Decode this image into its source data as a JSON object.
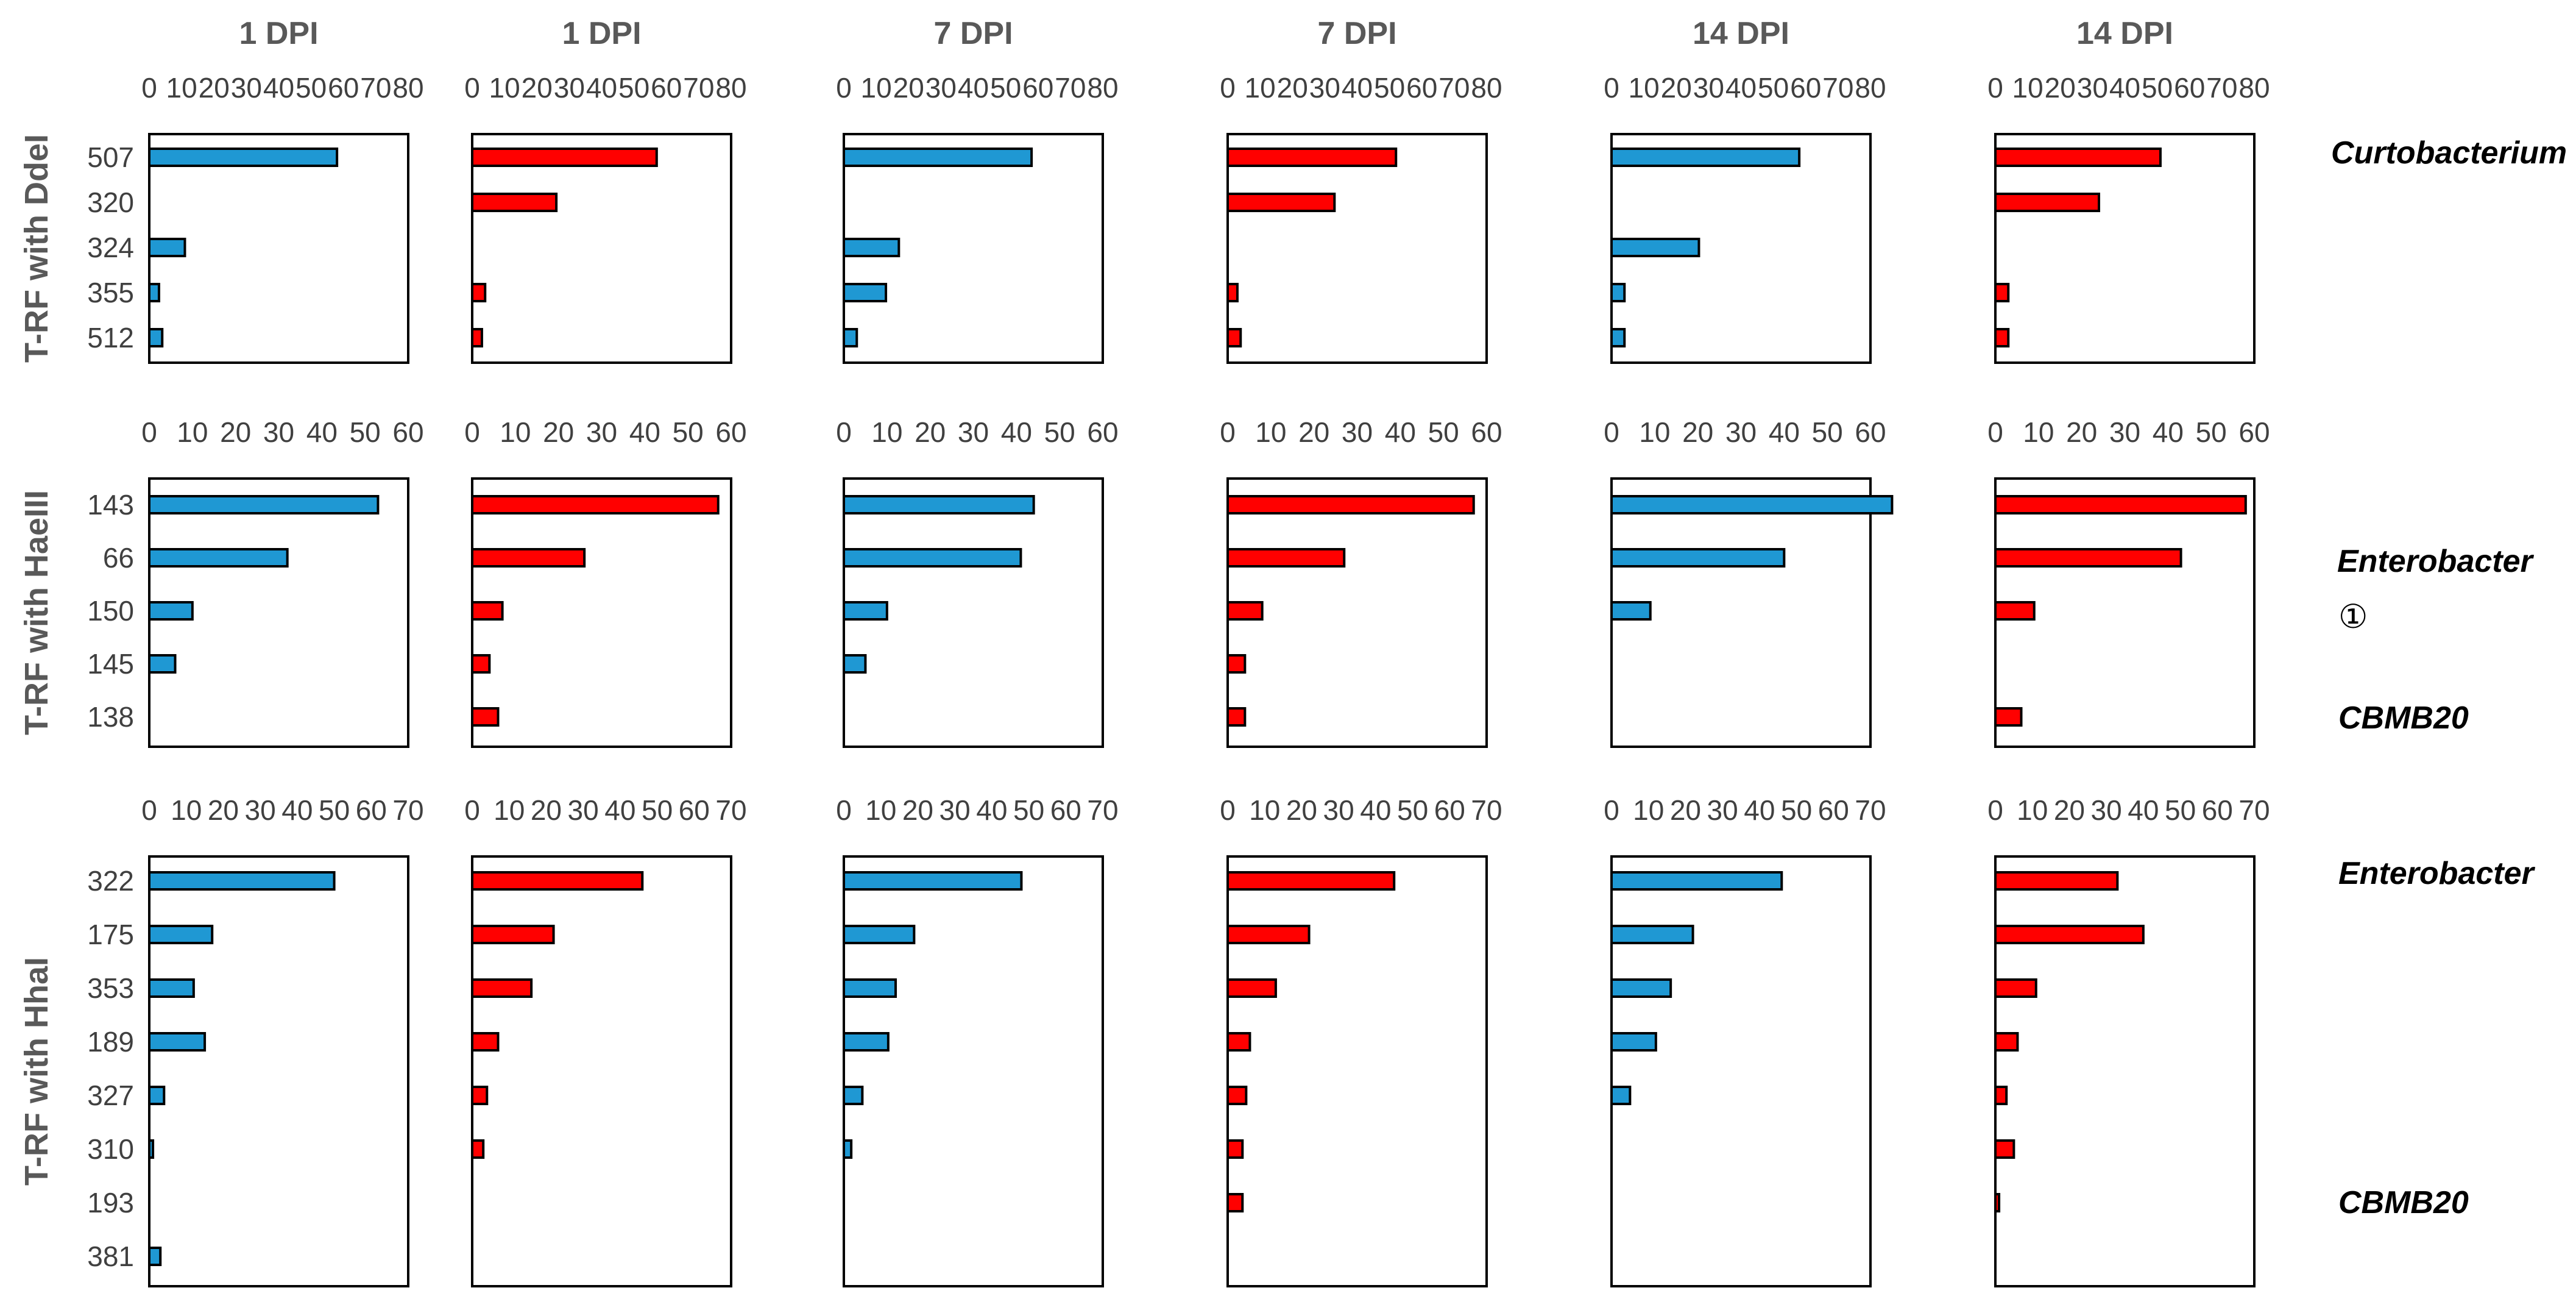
{
  "colors": {
    "blue": "#1f98d3",
    "red": "#ff0000"
  },
  "column_titles": [
    "1 DPI",
    "1 DPI",
    "7 DPI",
    "7 DPI",
    "14 DPI",
    "14 DPI"
  ],
  "row_titles": [
    "T-RF with DdeI",
    "T-RF with HaeIII",
    "T-RF with HhaI"
  ],
  "annotations": {
    "row1": "Curtobacterium",
    "row2_a": "Enterobacter",
    "row2_b": "①",
    "row2_c": "CBMB20",
    "row3_a": "Enterobacter",
    "row3_b": "CBMB20"
  },
  "chart_data": [
    {
      "type": "bar",
      "orientation": "horizontal",
      "row_title": "T-RF with DdeI",
      "categories": [
        "507",
        "320",
        "324",
        "355",
        "512"
      ],
      "xlim": [
        0,
        80
      ],
      "xticks": [
        0,
        10,
        20,
        30,
        40,
        50,
        60,
        70,
        80
      ],
      "series": [
        {
          "name": "1 DPI",
          "color": "blue",
          "values": [
            58,
            0,
            11,
            3,
            4
          ]
        },
        {
          "name": "1 DPI",
          "color": "red",
          "values": [
            57,
            26,
            0,
            4,
            3
          ]
        },
        {
          "name": "7 DPI",
          "color": "blue",
          "values": [
            58,
            0,
            17,
            13,
            4
          ]
        },
        {
          "name": "7 DPI",
          "color": "red",
          "values": [
            52,
            33,
            0,
            3,
            4
          ]
        },
        {
          "name": "14 DPI",
          "color": "blue",
          "values": [
            58,
            0,
            27,
            4,
            4
          ]
        },
        {
          "name": "14 DPI",
          "color": "red",
          "values": [
            51,
            32,
            0,
            4,
            4
          ]
        }
      ]
    },
    {
      "type": "bar",
      "orientation": "horizontal",
      "row_title": "T-RF with HaeIII",
      "categories": [
        "143",
        "66",
        "150",
        "145",
        "138"
      ],
      "xlim": [
        0,
        60
      ],
      "xticks": [
        0,
        10,
        20,
        30,
        40,
        50,
        60
      ],
      "series": [
        {
          "name": "1 DPI",
          "color": "blue",
          "values": [
            53,
            32,
            10,
            6,
            0
          ]
        },
        {
          "name": "1 DPI",
          "color": "red",
          "values": [
            57,
            26,
            7,
            4,
            6
          ]
        },
        {
          "name": "7 DPI",
          "color": "blue",
          "values": [
            44,
            41,
            10,
            5,
            0
          ]
        },
        {
          "name": "7 DPI",
          "color": "red",
          "values": [
            57,
            27,
            8,
            4,
            4
          ]
        },
        {
          "name": "14 DPI",
          "color": "blue",
          "values": [
            65,
            40,
            9,
            0,
            0
          ]
        },
        {
          "name": "14 DPI",
          "color": "red",
          "values": [
            58,
            43,
            9,
            0,
            6
          ]
        }
      ]
    },
    {
      "type": "bar",
      "orientation": "horizontal",
      "row_title": "T-RF with HhaI",
      "categories": [
        "322",
        "175",
        "353",
        "189",
        "327",
        "310",
        "193",
        "381"
      ],
      "xlim": [
        0,
        70
      ],
      "xticks": [
        0,
        10,
        20,
        30,
        40,
        50,
        60,
        70
      ],
      "series": [
        {
          "name": "1 DPI",
          "color": "blue",
          "values": [
            50,
            17,
            12,
            15,
            4,
            1,
            0,
            3
          ]
        },
        {
          "name": "1 DPI",
          "color": "red",
          "values": [
            46,
            22,
            16,
            7,
            4,
            3,
            0,
            0
          ]
        },
        {
          "name": "7 DPI",
          "color": "blue",
          "values": [
            48,
            19,
            14,
            12,
            5,
            2,
            0,
            0
          ]
        },
        {
          "name": "7 DPI",
          "color": "red",
          "values": [
            45,
            22,
            13,
            6,
            5,
            4,
            4,
            0
          ]
        },
        {
          "name": "14 DPI",
          "color": "blue",
          "values": [
            46,
            22,
            16,
            12,
            5,
            0,
            0,
            0
          ]
        },
        {
          "name": "14 DPI",
          "color": "red",
          "values": [
            33,
            40,
            11,
            6,
            3,
            5,
            1,
            0
          ]
        }
      ]
    }
  ]
}
